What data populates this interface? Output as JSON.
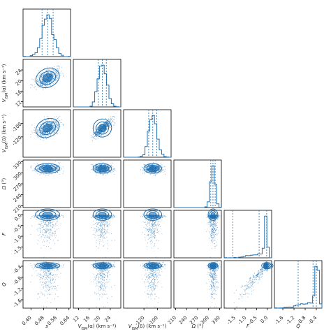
{
  "chart_data": {
    "type": "corner",
    "params": [
      {
        "key": "s",
        "label": "s",
        "range": [
          0.35,
          0.65
        ],
        "ticks": [
          "0.40",
          "0.48",
          "0.56",
          "0.64"
        ],
        "center": 0.505,
        "spread": 0.035,
        "quantiles": [
          0.47,
          0.505,
          0.54
        ]
      },
      {
        "key": "va",
        "label": "V_ISM(α) (km s⁻¹)",
        "range": [
          10,
          28
        ],
        "ticks": [
          "12",
          "16",
          "20",
          "24"
        ],
        "center": 21,
        "spread": 1.6,
        "quantiles": [
          19.5,
          21,
          22.5
        ]
      },
      {
        "key": "vd",
        "label": "V_ISM(δ) (km s⁻¹)",
        "range": [
          -150,
          -80
        ],
        "ticks": [
          "-120",
          "-100"
        ],
        "center": -107,
        "spread": 6,
        "quantiles": [
          -113,
          -107,
          -101
        ]
      },
      {
        "key": "om",
        "label": "Ω (°)",
        "range": [
          205,
          335
        ],
        "ticks": [
          "210",
          "240",
          "270",
          "300",
          "330"
        ],
        "center": 312,
        "spread": 6,
        "quantiles": [
          306,
          312,
          318
        ]
      },
      {
        "key": "F",
        "label": "F",
        "range": [
          -2.0,
          0.2
        ],
        "ticks": [
          "-1.5",
          "-1.0",
          "-0.5",
          "0.0"
        ],
        "center": 0.0,
        "spread": 0.12,
        "quantiles": [
          -1.6,
          -0.38,
          -0.03
        ]
      },
      {
        "key": "Q",
        "label": "Q",
        "range": [
          -1.9,
          -0.2
        ],
        "ticks": [
          "-1.6",
          "-1.2",
          "-0.8",
          "-0.4"
        ],
        "center": -0.38,
        "spread": 0.05,
        "quantiles": [
          -1.05,
          -0.52,
          -0.4
        ]
      }
    ],
    "axis_labels": [
      {
        "main": "s",
        "sub": "",
        "unit": ""
      },
      {
        "main": "V",
        "sub": "ISM",
        "arg": "(α)",
        "unit": "(km s⁻¹)"
      },
      {
        "main": "V",
        "sub": "ISM",
        "arg": "(δ)",
        "unit": "(km s⁻¹)"
      },
      {
        "main": "Ω",
        "sub": "",
        "arg": "",
        "unit": "(°)"
      },
      {
        "main": "F",
        "sub": "",
        "unit": ""
      },
      {
        "main": "Q",
        "sub": "",
        "unit": ""
      }
    ],
    "colors": {
      "line": "#1f6fb0",
      "fill_dark": "#1f6fb0",
      "fill_light": "#d5e6f3",
      "axis": "#000000"
    },
    "grid": false,
    "legend": "none"
  }
}
